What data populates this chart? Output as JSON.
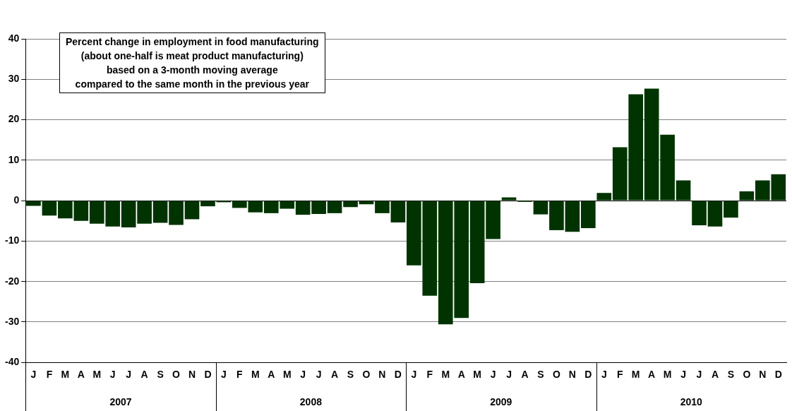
{
  "chart_data": {
    "type": "bar",
    "title": "Percent change in employment in food manufacturing\n(about one-half is meat product manufacturing)\nbased on a 3-month moving average\ncompared to the same month in the previous year",
    "categories": [
      "J",
      "F",
      "M",
      "A",
      "M",
      "J",
      "J",
      "A",
      "S",
      "O",
      "N",
      "D",
      "J",
      "F",
      "M",
      "A",
      "M",
      "J",
      "J",
      "A",
      "S",
      "O",
      "N",
      "D",
      "J",
      "F",
      "M",
      "A",
      "M",
      "J",
      "J",
      "A",
      "S",
      "O",
      "N",
      "D",
      "J",
      "F",
      "M",
      "A",
      "M",
      "J",
      "J",
      "A",
      "S",
      "O",
      "N",
      "D"
    ],
    "values": [
      -1.3,
      -3.7,
      -4.4,
      -5.0,
      -5.7,
      -6.4,
      -6.6,
      -5.7,
      -5.5,
      -6.0,
      -4.6,
      -1.4,
      -0.4,
      -1.8,
      -2.9,
      -3.1,
      -2.0,
      -3.5,
      -3.3,
      -3.1,
      -1.6,
      -0.9,
      -3.1,
      -5.4,
      -16.0,
      -23.5,
      -30.6,
      -29.0,
      -20.4,
      -9.5,
      0.8,
      -0.3,
      -3.4,
      -7.3,
      -7.7,
      -6.8,
      1.9,
      13.2,
      26.3,
      27.7,
      16.3,
      5.0,
      -6.1,
      -6.4,
      -4.2,
      2.3,
      5.0,
      6.5
    ],
    "color": "#003300",
    "ylim": [
      -40,
      40
    ],
    "yticks": [
      -40,
      -30,
      -20,
      -10,
      0,
      10,
      20,
      30,
      40
    ],
    "grid": "y",
    "annotations": [
      "2007",
      "2008",
      "2009",
      "2010"
    ]
  }
}
